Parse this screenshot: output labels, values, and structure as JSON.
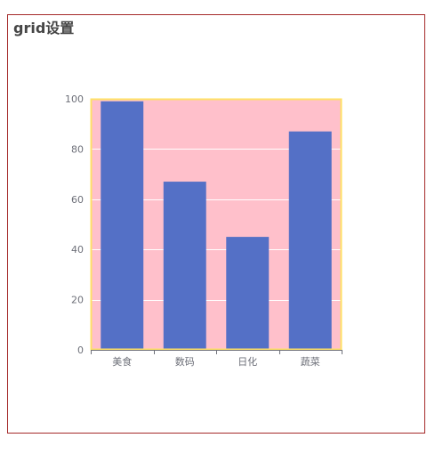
{
  "colors": {
    "frame_border": "#a52a2a",
    "grid_background": "#ffc0cb",
    "grid_border": "#ffe066",
    "bar": "#5470c6",
    "split_line": "#ffffff",
    "axis_line": "#6e7079"
  },
  "chart_data": {
    "type": "bar",
    "title": "grid设置",
    "categories": [
      "美食",
      "数码",
      "日化",
      "蔬菜"
    ],
    "values": [
      99,
      67,
      45,
      87
    ],
    "ylim": [
      0,
      100
    ],
    "yticks": [
      0,
      20,
      40,
      60,
      80,
      100
    ],
    "grid": true,
    "legend": false
  }
}
